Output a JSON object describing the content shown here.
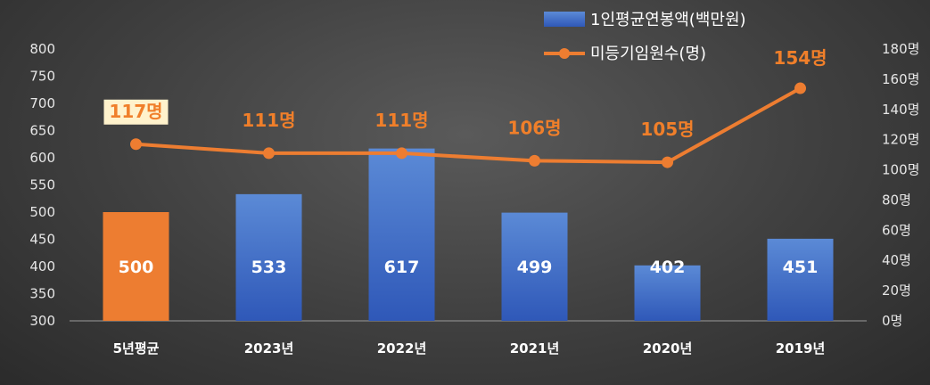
{
  "chart_data": {
    "type": "bar",
    "categories": [
      "5년평균",
      "2023년",
      "2022년",
      "2021년",
      "2020년",
      "2019년"
    ],
    "series": [
      {
        "name": "1인평균연봉액(백만원)",
        "type": "bar",
        "axis": "left",
        "values": [
          500,
          533,
          617,
          499,
          402,
          451
        ],
        "labels": [
          "500",
          "533",
          "617",
          "499",
          "402",
          "451"
        ]
      },
      {
        "name": "미등기임원수(명)",
        "type": "line",
        "axis": "right",
        "values": [
          117,
          111,
          111,
          106,
          105,
          154
        ],
        "labels": [
          "117명",
          "111명",
          "111명",
          "106명",
          "105명",
          "154명"
        ]
      }
    ],
    "y_left": {
      "min": 300,
      "max": 800,
      "step": 50,
      "ticks": [
        "300",
        "350",
        "400",
        "450",
        "500",
        "550",
        "600",
        "650",
        "700",
        "750",
        "800"
      ]
    },
    "y_right": {
      "min": 0,
      "max": 180,
      "step": 20,
      "ticks": [
        "0명",
        "20명",
        "40명",
        "60명",
        "80명",
        "100명",
        "120명",
        "140명",
        "160명",
        "180명"
      ]
    },
    "legend": "top-right",
    "grid": false,
    "colors": {
      "bar": "#4472c4",
      "highlight_bar": "#ed7d31",
      "line": "#ed7d31",
      "line_label": "#f07f2a",
      "highlight_label_bg": "#fff2cc"
    }
  }
}
